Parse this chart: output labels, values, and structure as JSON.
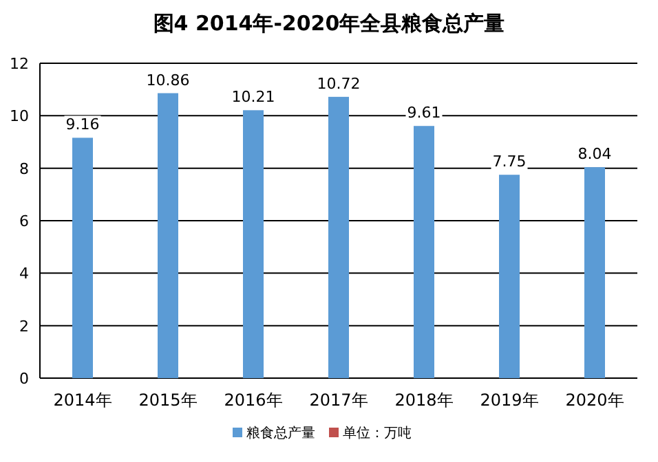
{
  "chart_data": {
    "type": "bar",
    "title": "**图4  2014年-2020年全县粮食总产量**",
    "categories": [
      "2014年",
      "2015年",
      "2016年",
      "2017年",
      "2018年",
      "2019年",
      "2020年"
    ],
    "series": [
      {
        "name": "粮食总产量",
        "color": "#5b9bd5",
        "values": [
          9.16,
          10.86,
          10.21,
          10.72,
          9.61,
          7.75,
          8.04
        ]
      },
      {
        "name": "单位：万吨",
        "color": "#c0504d",
        "values": [
          null,
          null,
          null,
          null,
          null,
          null,
          null
        ]
      }
    ],
    "ylim": [
      0,
      12
    ],
    "yticks": [
      0,
      2,
      4,
      6,
      8,
      10,
      12
    ],
    "grid": "y",
    "legend": "bottom",
    "data_labels": true
  }
}
